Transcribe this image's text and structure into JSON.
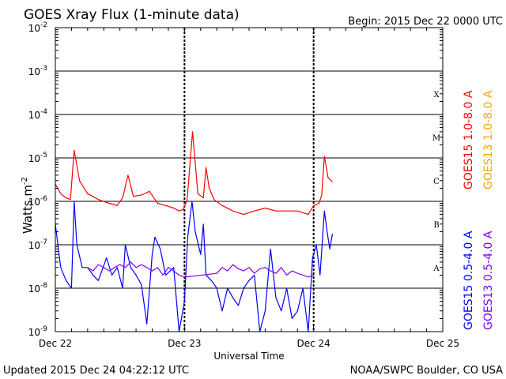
{
  "header": {
    "title": "GOES Xray Flux (1-minute data)",
    "begin": "Begin:  2015 Dec 22 0000 UTC"
  },
  "footer": {
    "updated": "Updated 2015 Dec 24 04:22:12 UTC",
    "credit": "NOAA/SWPC Boulder, CO USA"
  },
  "chart_data": {
    "type": "line",
    "title": "GOES Xray Flux (1-minute data)",
    "xlabel": "Universal Time",
    "ylabel_base": "Watts m",
    "ylabel_exp": "-2",
    "yscale": "log",
    "ylim": [
      1e-09,
      0.01
    ],
    "xlim": [
      0,
      72
    ],
    "x_unit": "hours since 2015 Dec 22 0000 UTC",
    "x_ticks": [
      {
        "x": 0,
        "label": "Dec 22"
      },
      {
        "x": 24,
        "label": "Dec 23"
      },
      {
        "x": 48,
        "label": "Dec 24"
      },
      {
        "x": 72,
        "label": "Dec 25"
      }
    ],
    "y_ticks": [
      {
        "exp": -9,
        "label": "10",
        "sup": "-9"
      },
      {
        "exp": -8,
        "label": "10",
        "sup": "-8"
      },
      {
        "exp": -7,
        "label": "10",
        "sup": "-7"
      },
      {
        "exp": -6,
        "label": "10",
        "sup": "-6"
      },
      {
        "exp": -5,
        "label": "10",
        "sup": "-5"
      },
      {
        "exp": -4,
        "label": "10",
        "sup": "-4"
      },
      {
        "exp": -3,
        "label": "10",
        "sup": "-3"
      },
      {
        "exp": -2,
        "label": "10",
        "sup": "-2"
      }
    ],
    "flare_classes": [
      {
        "label": "A",
        "y": 3e-08
      },
      {
        "label": "B",
        "y": 3e-07
      },
      {
        "label": "C",
        "y": 3e-06
      },
      {
        "label": "M",
        "y": 3e-05
      },
      {
        "label": "X",
        "y": 0.0003
      }
    ],
    "right_legend": [
      {
        "label": "GOES15 1.0-8.0 A",
        "color": "#ff0000"
      },
      {
        "label": "GOES13 1.0-8.0 A",
        "color": "#ffa500"
      },
      {
        "label": "GOES15 0.5-4.0 A",
        "color": "#0000ff"
      },
      {
        "label": "GOES13 0.5-4.0 A",
        "color": "#7f00ff"
      }
    ],
    "series": [
      {
        "name": "GOES15 1.0-8.0 A",
        "color": "#ff0000",
        "x": [
          0,
          1,
          2,
          2.8,
          3.5,
          4.5,
          6,
          8,
          10,
          11.5,
          12.5,
          13.5,
          14.5,
          16,
          17.5,
          19,
          20.5,
          22,
          23,
          23.8,
          24.5,
          25.5,
          26.5,
          27.5,
          28,
          28.6,
          29.5,
          31,
          33,
          35,
          37,
          39,
          41,
          43,
          45,
          47,
          48,
          49,
          49.5,
          50,
          50.7,
          51.5
        ],
        "values": [
          2.5e-06,
          1.5e-06,
          1.2e-06,
          1.1e-06,
          1.5e-05,
          3e-06,
          1.5e-06,
          1.1e-06,
          9e-07,
          8e-07,
          1.2e-06,
          4e-06,
          1.3e-06,
          1.4e-06,
          1.7e-06,
          9e-07,
          8e-07,
          7e-07,
          6e-07,
          6.5e-07,
          1.1e-06,
          4e-05,
          1.5e-06,
          1.2e-06,
          6e-06,
          2e-06,
          1.1e-06,
          8e-07,
          6e-07,
          5e-07,
          6e-07,
          7e-07,
          6e-07,
          6e-07,
          6e-07,
          5e-07,
          8e-07,
          9e-07,
          1.4e-06,
          1.1e-05,
          3.5e-06,
          2.8e-06
        ]
      },
      {
        "name": "GOES15 0.5-4.0 A",
        "color": "#0000ff",
        "x": [
          0,
          1,
          2,
          3,
          3.5,
          4,
          5,
          6,
          7,
          8,
          9.5,
          10.5,
          11.5,
          12.5,
          13,
          14,
          15,
          16,
          17,
          18,
          18.5,
          19.5,
          20.5,
          22,
          23,
          24,
          24.6,
          25.4,
          26,
          27,
          27.5,
          28,
          29,
          30,
          31,
          32,
          33,
          34,
          35,
          36,
          37,
          38,
          39,
          40,
          41,
          42,
          43,
          44,
          45,
          46,
          47,
          47.8,
          48.5,
          49.2,
          50,
          50.5,
          51,
          51.5
        ],
        "values": [
          3e-07,
          3e-08,
          1.5e-08,
          1e-08,
          1e-06,
          1e-07,
          3e-08,
          3e-08,
          2e-08,
          1.5e-08,
          5e-08,
          2e-08,
          3e-08,
          1e-08,
          1e-07,
          3e-08,
          2e-08,
          1.2e-08,
          1.5e-09,
          6e-08,
          1.5e-07,
          8e-08,
          2e-08,
          3e-08,
          1e-09,
          5e-09,
          1.5e-07,
          1e-06,
          2e-07,
          6e-08,
          3e-07,
          2e-08,
          1.5e-08,
          1e-08,
          3e-09,
          1e-08,
          6e-09,
          4e-09,
          1e-08,
          1.5e-08,
          2e-08,
          1e-09,
          3e-09,
          8e-08,
          6e-09,
          3e-09,
          1e-08,
          2e-09,
          3e-09,
          1e-08,
          1e-09,
          5e-08,
          1e-07,
          2e-08,
          6e-07,
          2e-07,
          8e-08,
          1.8e-07
        ]
      },
      {
        "name": "GOES13 0.5-4.0 A",
        "color": "#7f00ff",
        "x": [
          6,
          7,
          8,
          9,
          10,
          11,
          12,
          13,
          14,
          15,
          16,
          17,
          18,
          19,
          20,
          21,
          22,
          23,
          24,
          30,
          31,
          32,
          33,
          34,
          35,
          36,
          37,
          38,
          39,
          40,
          41,
          42,
          43,
          44,
          45,
          46,
          47,
          48
        ],
        "values": [
          3e-08,
          2.5e-08,
          3.5e-08,
          3e-08,
          2.5e-08,
          3e-08,
          3.5e-08,
          3e-08,
          4e-08,
          3e-08,
          3.5e-08,
          3e-08,
          2.5e-08,
          3e-08,
          2e-08,
          3e-08,
          2.5e-08,
          2e-08,
          1.8e-08,
          2.2e-08,
          3e-08,
          2.5e-08,
          3.5e-08,
          2.8e-08,
          2.5e-08,
          3e-08,
          2.2e-08,
          2.8e-08,
          3e-08,
          2.5e-08,
          2.2e-08,
          3e-08,
          2e-08,
          2.5e-08,
          2.2e-08,
          2e-08,
          1.8e-08,
          2e-08
        ]
      }
    ]
  }
}
